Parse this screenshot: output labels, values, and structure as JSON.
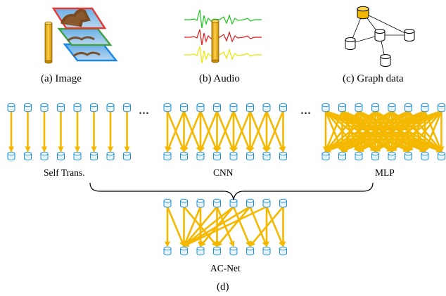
{
  "panels": {
    "image": "(a) Image",
    "audio": "(b) Audio",
    "graph": "(c) Graph data"
  },
  "networks": {
    "self_trans": "Self Trans.",
    "cnn": "CNN",
    "mlp": "MLP",
    "acnet": "AC-Net",
    "ellipsis": "..."
  },
  "figure_label": "(d)",
  "colors": {
    "node": "#1e90d6",
    "node_fill": "#e8f4fc",
    "edge": "#f5b800",
    "image_red": "#e53935",
    "image_green": "#43a047",
    "image_blue": "#1e88e5",
    "audio_green": "#1fc41f",
    "audio_red": "#e01818",
    "audio_yellow": "#e8e800",
    "cylinder": "#f2b705"
  }
}
